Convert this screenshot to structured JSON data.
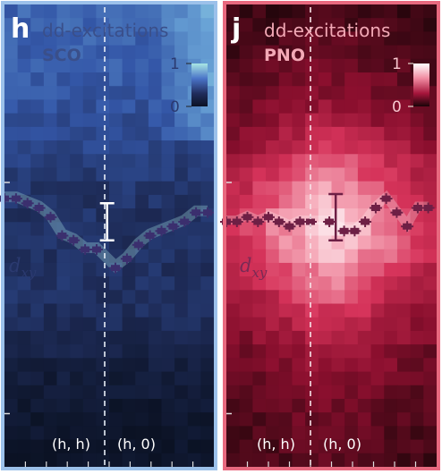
{
  "chart_data": [
    {
      "type": "heatmap",
      "panel_letter": "h",
      "title": "dd-excitations",
      "sample": "SCO",
      "orbital_label": "d",
      "orbital_sub": "xy",
      "x_tick_labels": [
        "(h, h)",
        "(h, 0)"
      ],
      "colorbar": {
        "min": 0,
        "max": 1,
        "tick_labels": [
          "1",
          "0"
        ],
        "low_color": "#0b1224",
        "high_color": "#a8e6e4"
      },
      "frame_color": "#9cc1ea",
      "marker_color": "#3b2f6e",
      "band_color": "#9fd3da",
      "x_marker": [
        0.0,
        0.055,
        0.11,
        0.165,
        0.22,
        0.275,
        0.33,
        0.385,
        0.44,
        0.53,
        0.585,
        0.64,
        0.695,
        0.75,
        0.805,
        0.86,
        0.915,
        0.97
      ],
      "y_marker": [
        0.42,
        0.42,
        0.43,
        0.44,
        0.46,
        0.5,
        0.51,
        0.53,
        0.53,
        0.57,
        0.55,
        0.52,
        0.5,
        0.49,
        0.48,
        0.47,
        0.45,
        0.45
      ],
      "error_bar": {
        "x": 0.49,
        "y": 0.47,
        "half_range": 0.04
      },
      "intensity_profile": [
        [
          0.0,
          0.55
        ],
        [
          0.18,
          0.5
        ],
        [
          0.28,
          0.42
        ],
        [
          0.42,
          0.3
        ],
        [
          0.52,
          0.28
        ],
        [
          0.62,
          0.3
        ],
        [
          0.72,
          0.22
        ],
        [
          0.8,
          0.12
        ],
        [
          0.9,
          0.05
        ],
        [
          1.0,
          0.02
        ]
      ]
    },
    {
      "type": "heatmap",
      "panel_letter": "j",
      "title": "dd-excitations",
      "sample": "PNO",
      "orbital_label": "d",
      "orbital_sub": "xy",
      "x_tick_labels": [
        "(h, h)",
        "(h, 0)"
      ],
      "colorbar": {
        "min": 0,
        "max": 1,
        "tick_labels": [
          "1",
          "0"
        ],
        "low_color": "#1a0408",
        "high_color": "#ffffff"
      },
      "frame_color": "#e8697f",
      "marker_color": "#6e1f45",
      "band_color": "#ffffff",
      "x_marker": [
        0.0,
        0.05,
        0.1,
        0.15,
        0.2,
        0.25,
        0.3,
        0.35,
        0.4,
        0.49,
        0.56,
        0.61,
        0.66,
        0.71,
        0.76,
        0.81,
        0.86,
        0.91,
        0.96
      ],
      "y_marker": [
        0.47,
        0.47,
        0.46,
        0.47,
        0.46,
        0.47,
        0.48,
        0.47,
        0.47,
        0.47,
        0.49,
        0.49,
        0.47,
        0.44,
        0.42,
        0.45,
        0.48,
        0.44,
        0.44
      ],
      "error_bar": {
        "x": 0.52,
        "y": 0.46,
        "half_range": 0.05
      },
      "intensity_profile": [
        [
          0.0,
          0.05
        ],
        [
          0.12,
          0.18
        ],
        [
          0.22,
          0.3
        ],
        [
          0.32,
          0.55
        ],
        [
          0.4,
          0.75
        ],
        [
          0.47,
          0.9
        ],
        [
          0.55,
          0.8
        ],
        [
          0.65,
          0.55
        ],
        [
          0.75,
          0.35
        ],
        [
          0.85,
          0.22
        ],
        [
          1.0,
          0.12
        ]
      ]
    }
  ]
}
